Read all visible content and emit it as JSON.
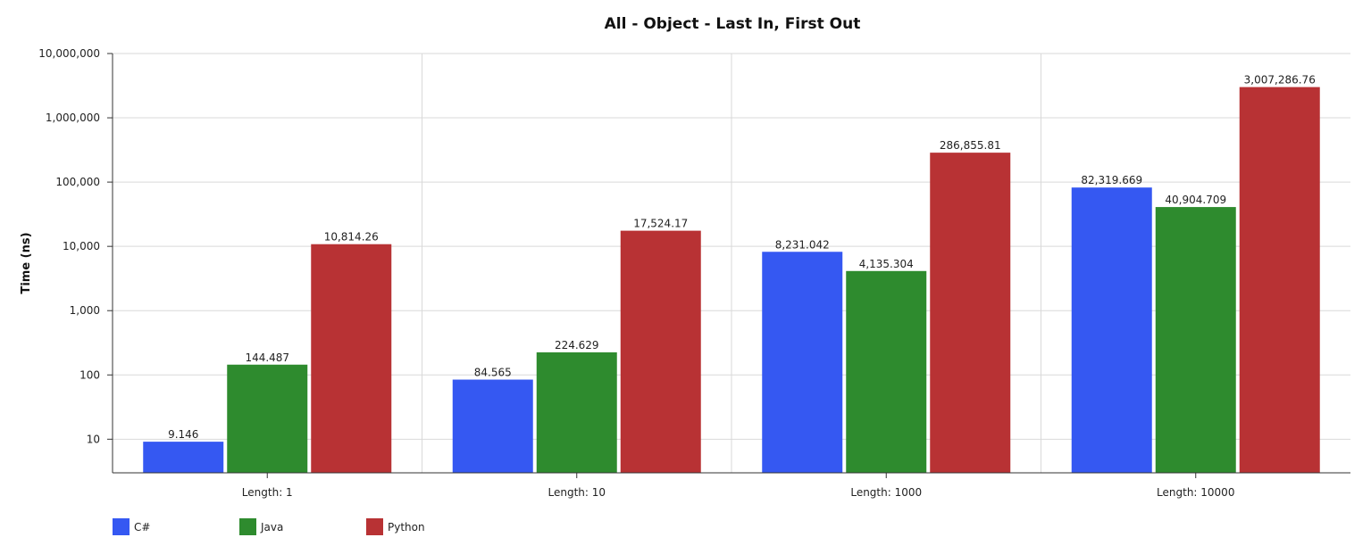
{
  "chart_data": {
    "type": "bar",
    "title": "All - Object - Last In, First Out",
    "xlabel": "",
    "ylabel": "Time (ns)",
    "yscale": "log",
    "ylim": [
      3,
      10000000
    ],
    "yticks": [
      10,
      100,
      1000,
      10000,
      100000,
      1000000,
      10000000
    ],
    "ytick_labels": [
      "10",
      "100",
      "1,000",
      "10,000",
      "100,000",
      "1,000,000",
      "10,000,000"
    ],
    "categories": [
      "Length: 1",
      "Length: 10",
      "Length: 1000",
      "Length: 10000"
    ],
    "series": [
      {
        "name": "C#",
        "color": "#3558f2",
        "values": [
          9.146,
          84.565,
          8231.042,
          82319.669
        ],
        "labels": [
          "9.146",
          "84.565",
          "8,231.042",
          "82,319.669"
        ]
      },
      {
        "name": "Java",
        "color": "#2e8b2e",
        "values": [
          144.487,
          224.629,
          4135.304,
          40904.709
        ],
        "labels": [
          "144.487",
          "224.629",
          "4,135.304",
          "40,904.709"
        ]
      },
      {
        "name": "Python",
        "color": "#b83234",
        "values": [
          10814.26,
          17524.17,
          286855.81,
          3007286.76
        ],
        "labels": [
          "10,814.26",
          "17,524.17",
          "286,855.81",
          "3,007,286.76"
        ]
      }
    ],
    "grid": true,
    "legend_position": "bottom-left"
  }
}
